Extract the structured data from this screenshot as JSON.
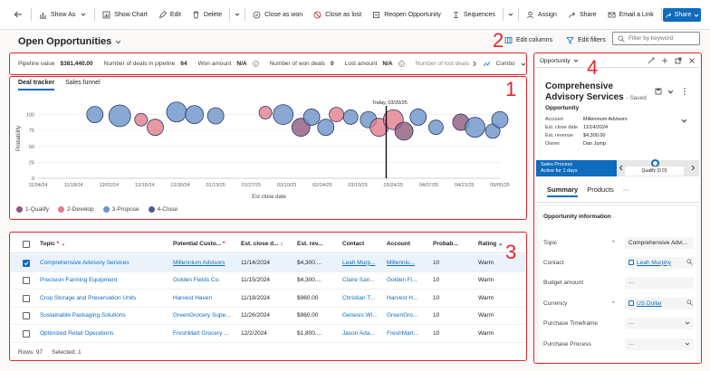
{
  "toolbar": {
    "items": [
      {
        "icon": "chart-icon",
        "label": "Show As"
      },
      {
        "icon": "chart-bars-icon",
        "label": "Show Chart"
      },
      {
        "icon": "pencil-icon",
        "label": "Edit"
      },
      {
        "icon": "trash-icon",
        "label": "Delete"
      },
      {
        "icon": "check-circle-icon",
        "label": "Close as won"
      },
      {
        "icon": "block-icon",
        "label": "Close as lost"
      },
      {
        "icon": "reopen-icon",
        "label": "Reopen Opportunity"
      },
      {
        "icon": "sequence-icon",
        "label": "Sequences"
      },
      {
        "icon": "person-icon",
        "label": "Assign"
      },
      {
        "icon": "share-icon",
        "label": "Share"
      },
      {
        "icon": "mail-icon",
        "label": "Email a Link"
      }
    ],
    "share_button": "Share"
  },
  "view": {
    "title": "Open Opportunities",
    "edit_columns": "Edit columns",
    "edit_filters": "Edit filters",
    "filter_placeholder": "Filter by keyword"
  },
  "annotations": [
    "1",
    "2",
    "3",
    "4"
  ],
  "summary": {
    "pipeline_label": "Pipeline value",
    "pipeline_value": "$381,440.00",
    "deals_label": "Number of deals in pipeline",
    "deals_value": "64",
    "won_amount_label": "Won amount",
    "won_amount_value": "N/A",
    "won_deals_label": "Number of won deals",
    "won_deals_value": "0",
    "lost_amount_label": "Lost amount",
    "lost_amount_value": "N/A",
    "lost_deals_label": "Number of lost deals",
    "combo_label": "Combo"
  },
  "chart_panel": {
    "tabs": [
      "Deal tracker",
      "Sales funnel"
    ],
    "today_label": "Today, 03/20/25",
    "legend": [
      {
        "label": "1-Qualify",
        "color": "#8e5a7d"
      },
      {
        "label": "2-Develop",
        "color": "#e27d8c"
      },
      {
        "label": "3-Propose",
        "color": "#6b94c9"
      },
      {
        "label": "4-Close",
        "color": "#4a5f8f"
      }
    ]
  },
  "chart_data": {
    "type": "scatter",
    "xlabel": "Est close date",
    "ylabel": "Probability",
    "x_ticks": [
      "11/04/24",
      "11/18/24",
      "12/02/24",
      "12/16/24",
      "12/30/24",
      "01/13/25",
      "01/27/25",
      "02/10/25",
      "02/24/25",
      "03/10/25",
      "03/24/25",
      "04/07/25",
      "04/21/25",
      "05/05/25"
    ],
    "y_ticks": [
      0,
      25,
      50,
      75,
      100
    ],
    "ylim": [
      0,
      125
    ],
    "today_x": 9.8,
    "bubbles": [
      {
        "x": 1.6,
        "y": 100,
        "r": 9,
        "stage": 3
      },
      {
        "x": 2.3,
        "y": 98,
        "r": 12,
        "stage": 3
      },
      {
        "x": 2.9,
        "y": 92,
        "r": 7,
        "stage": 2
      },
      {
        "x": 3.3,
        "y": 80,
        "r": 9,
        "stage": 2
      },
      {
        "x": 3.9,
        "y": 104,
        "r": 11,
        "stage": 3
      },
      {
        "x": 4.4,
        "y": 100,
        "r": 10,
        "stage": 3
      },
      {
        "x": 5.0,
        "y": 98,
        "r": 9,
        "stage": 3
      },
      {
        "x": 6.4,
        "y": 103,
        "r": 7,
        "stage": 2
      },
      {
        "x": 6.9,
        "y": 100,
        "r": 11,
        "stage": 3
      },
      {
        "x": 7.4,
        "y": 80,
        "r": 10,
        "stage": 1
      },
      {
        "x": 7.7,
        "y": 96,
        "r": 9,
        "stage": 3
      },
      {
        "x": 8.1,
        "y": 80,
        "r": 9,
        "stage": 3
      },
      {
        "x": 8.4,
        "y": 100,
        "r": 8,
        "stage": 2
      },
      {
        "x": 8.8,
        "y": 96,
        "r": 8,
        "stage": 3
      },
      {
        "x": 9.3,
        "y": 92,
        "r": 9,
        "stage": 3
      },
      {
        "x": 9.6,
        "y": 80,
        "r": 10,
        "stage": 2
      },
      {
        "x": 10.0,
        "y": 92,
        "r": 11,
        "stage": 2
      },
      {
        "x": 10.3,
        "y": 74,
        "r": 10,
        "stage": 1
      },
      {
        "x": 10.7,
        "y": 96,
        "r": 9,
        "stage": 3
      },
      {
        "x": 11.2,
        "y": 80,
        "r": 8,
        "stage": 3
      },
      {
        "x": 11.9,
        "y": 88,
        "r": 9,
        "stage": 1
      },
      {
        "x": 12.3,
        "y": 80,
        "r": 11,
        "stage": 3
      },
      {
        "x": 12.8,
        "y": 74,
        "r": 8,
        "stage": 3
      },
      {
        "x": 13.0,
        "y": 92,
        "r": 9,
        "stage": 3
      }
    ]
  },
  "grid": {
    "columns": [
      "Topic",
      "Potential Custo...",
      "Est. close d...",
      "Est. rev...",
      "Contact",
      "Account",
      "Probab...",
      "Rating"
    ],
    "rows": [
      {
        "topic": "Comprehensive Advisory Services",
        "customer": "Millennium Advisors",
        "close": "11/14/2024",
        "revenue": "$4,300....",
        "contact": "Leah Murp...",
        "account": "Millenniu...",
        "prob": "10",
        "rating": "Warm",
        "selected": true
      },
      {
        "topic": "Precision Farming Equipment",
        "customer": "Golden Fields Co.",
        "close": "11/15/2024",
        "revenue": "$4,300....",
        "contact": "Claire San...",
        "account": "Golden Fi...",
        "prob": "10",
        "rating": "Warm",
        "selected": false
      },
      {
        "topic": "Crop Storage and Preservation Units",
        "customer": "Harvest Haven",
        "close": "11/18/2024",
        "revenue": "$960.00",
        "contact": "Christian T...",
        "account": "Harvest H...",
        "prob": "10",
        "rating": "Warm",
        "selected": false
      },
      {
        "topic": "Sustainable Packaging Solutions",
        "customer": "GreenGrocery Supe...",
        "close": "11/26/2024",
        "revenue": "$960.00",
        "contact": "Genesis Wi...",
        "account": "GreenGro...",
        "prob": "10",
        "rating": "Warm",
        "selected": false
      },
      {
        "topic": "Optimized Retail Operations",
        "customer": "FreshMart Grocery ...",
        "close": "12/2/2024",
        "revenue": "$1,800....",
        "contact": "Jason Ada...",
        "account": "FreshMart...",
        "prob": "10",
        "rating": "Warm",
        "selected": false
      }
    ],
    "footer_rows": "Rows: 97",
    "footer_selected": "Selected: 1"
  },
  "side": {
    "entity_select": "Opportunity",
    "title": "Comprehensive Advisory Services",
    "saved": "- Saved",
    "entity": "Opportunity",
    "header_fields": [
      {
        "k": "Account",
        "v": "Millennium Advisors",
        "link": true
      },
      {
        "k": "Est. close date",
        "v": "11/14/2024",
        "link": false
      },
      {
        "k": "Est. revenue",
        "v": "$4,300.00",
        "link": false
      },
      {
        "k": "Owner",
        "v": "Dan Jump",
        "link": true
      }
    ],
    "bpf_title": "Sales Process",
    "bpf_sub": "Active for 1 days",
    "bpf_stage": "Qualify (0 D)",
    "tabs": [
      "Summary",
      "Products"
    ],
    "section": "Opportunity information",
    "fields": [
      {
        "label": "Topic",
        "value": "Comprehensive Advi...",
        "required": true,
        "kind": "text"
      },
      {
        "label": "Contact",
        "value": "Leah Murphy",
        "required": false,
        "kind": "lookup"
      },
      {
        "label": "Budget amount",
        "value": "---",
        "required": false,
        "kind": "empty"
      },
      {
        "label": "Currency",
        "value": "US Dollar",
        "required": true,
        "kind": "lookup"
      },
      {
        "label": "Purchase Timeframe",
        "value": "---",
        "required": false,
        "kind": "select"
      },
      {
        "label": "Purchase Process",
        "value": "---",
        "required": false,
        "kind": "select"
      }
    ]
  }
}
